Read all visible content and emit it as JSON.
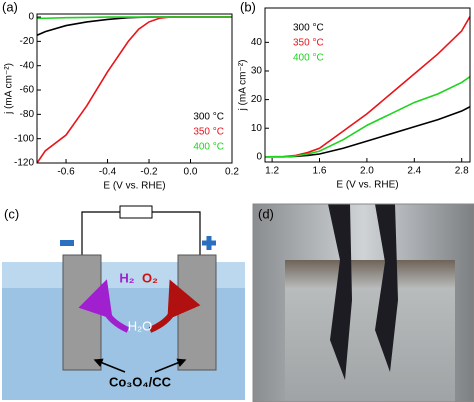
{
  "chart_data": [
    {
      "type": "line",
      "panel_label": "(a)",
      "x_label": "E (V vs. RHE)",
      "y_label": "j (mA cm⁻²)",
      "x": [
        -0.74,
        -0.7,
        -0.6,
        -0.5,
        -0.4,
        -0.3,
        -0.25,
        -0.2,
        -0.15,
        -0.1,
        0,
        0.1,
        0.2
      ],
      "series": [
        {
          "name": "300 °C",
          "color": "#000000",
          "values": [
            -15,
            -12,
            -7,
            -4,
            -2,
            -0.5,
            -0.2,
            0,
            0,
            0,
            0,
            0,
            0
          ]
        },
        {
          "name": "350 °C",
          "color": "#e8141b",
          "values": [
            -120,
            -110,
            -97,
            -73,
            -45,
            -20,
            -10,
            -4,
            -1,
            0,
            0,
            0,
            0
          ]
        },
        {
          "name": "400 °C",
          "color": "#1fd31f",
          "values": [
            -1,
            -1,
            -0.5,
            -0.3,
            0,
            0,
            0,
            0,
            0,
            0,
            0,
            0,
            0
          ]
        }
      ],
      "xlim": [
        -0.74,
        0.2
      ],
      "xticks": [
        -0.6,
        -0.4,
        -0.2,
        {
          "value": 0,
          "label": "0.0"
        },
        0.2
      ],
      "ylim": [
        -120,
        2.5
      ],
      "yticks": [
        -120,
        -100,
        -80,
        -60,
        -40,
        -20,
        0
      ],
      "legend": "lower right"
    },
    {
      "type": "line",
      "panel_label": "(b)",
      "x_label": "E (V vs. RHE)",
      "y_label": "j (mA cm⁻²)",
      "x": [
        1.14,
        1.3,
        1.4,
        1.5,
        1.6,
        1.8,
        2.0,
        2.2,
        2.4,
        2.6,
        2.8,
        2.87
      ],
      "series": [
        {
          "name": "300 °C",
          "color": "#000000",
          "values": [
            0,
            0,
            0.2,
            0.5,
            1,
            3,
            5.5,
            8,
            10.5,
            13,
            16,
            17.5
          ]
        },
        {
          "name": "350 °C",
          "color": "#e8141b",
          "values": [
            0,
            0.1,
            0.5,
            1.5,
            3,
            9,
            15,
            22,
            29,
            36,
            44,
            49
          ]
        },
        {
          "name": "400 °C",
          "color": "#1fd31f",
          "values": [
            0,
            0,
            0.3,
            1,
            2,
            6,
            11,
            15,
            19,
            22,
            26,
            28
          ]
        }
      ],
      "xlim": [
        1.14,
        2.87
      ],
      "xticks": [
        1.2,
        1.6,
        {
          "value": 2,
          "label": "2.0"
        },
        2.4,
        2.8
      ],
      "ylim": [
        -1.8,
        52
      ],
      "yticks": [
        0,
        10,
        20,
        30,
        40
      ],
      "legend": "upper left"
    }
  ],
  "diagram": {
    "panel_label": "(c)",
    "h2": "H₂",
    "o2": "O₂",
    "h2o": "H₂O",
    "electrode": "Co₃O₄/CC"
  },
  "photo": {
    "panel_label": "(d)"
  }
}
